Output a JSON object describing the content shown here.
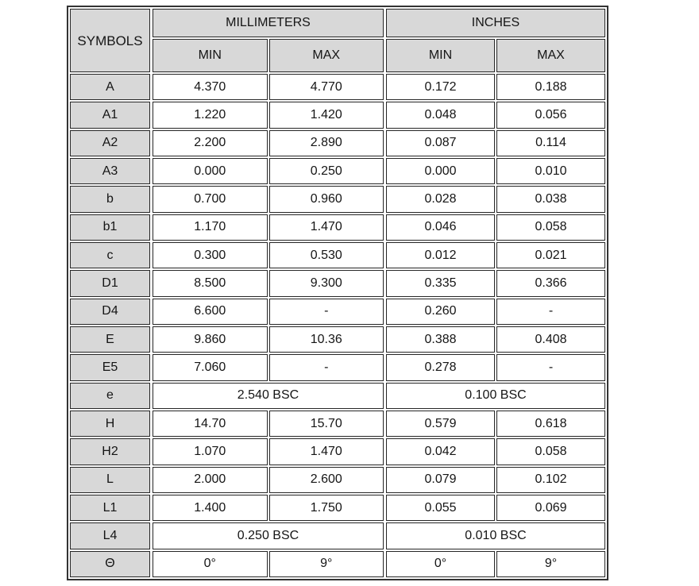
{
  "table": {
    "symbols_header": "SYMBOLS",
    "groups": [
      {
        "label": "MILLIMETERS",
        "min_label": "MIN",
        "max_label": "MAX"
      },
      {
        "label": "INCHES",
        "min_label": "MIN",
        "max_label": "MAX"
      }
    ],
    "rows": [
      {
        "symbol": "A",
        "mm_min": "4.370",
        "mm_max": "4.770",
        "in_min": "0.172",
        "in_max": "0.188"
      },
      {
        "symbol": "A1",
        "mm_min": "1.220",
        "mm_max": "1.420",
        "in_min": "0.048",
        "in_max": "0.056"
      },
      {
        "symbol": "A2",
        "mm_min": "2.200",
        "mm_max": "2.890",
        "in_min": "0.087",
        "in_max": "0.114"
      },
      {
        "symbol": "A3",
        "mm_min": "0.000",
        "mm_max": "0.250",
        "in_min": "0.000",
        "in_max": "0.010"
      },
      {
        "symbol": "b",
        "mm_min": "0.700",
        "mm_max": "0.960",
        "in_min": "0.028",
        "in_max": "0.038"
      },
      {
        "symbol": "b1",
        "mm_min": "1.170",
        "mm_max": "1.470",
        "in_min": "0.046",
        "in_max": "0.058"
      },
      {
        "symbol": "c",
        "mm_min": "0.300",
        "mm_max": "0.530",
        "in_min": "0.012",
        "in_max": "0.021"
      },
      {
        "symbol": "D1",
        "mm_min": "8.500",
        "mm_max": "9.300",
        "in_min": "0.335",
        "in_max": "0.366"
      },
      {
        "symbol": "D4",
        "mm_min": "6.600",
        "mm_max": "-",
        "in_min": "0.260",
        "in_max": "-"
      },
      {
        "symbol": "E",
        "mm_min": "9.860",
        "mm_max": "10.36",
        "in_min": "0.388",
        "in_max": "0.408"
      },
      {
        "symbol": "E5",
        "mm_min": "7.060",
        "mm_max": "-",
        "in_min": "0.278",
        "in_max": "-"
      },
      {
        "symbol": "e",
        "span": true,
        "mm": "2.540 BSC",
        "in": "0.100 BSC"
      },
      {
        "symbol": "H",
        "mm_min": "14.70",
        "mm_max": "15.70",
        "in_min": "0.579",
        "in_max": "0.618"
      },
      {
        "symbol": "H2",
        "mm_min": "1.070",
        "mm_max": "1.470",
        "in_min": "0.042",
        "in_max": "0.058"
      },
      {
        "symbol": "L",
        "mm_min": "2.000",
        "mm_max": "2.600",
        "in_min": "0.079",
        "in_max": "0.102"
      },
      {
        "symbol": "L1",
        "mm_min": "1.400",
        "mm_max": "1.750",
        "in_min": "0.055",
        "in_max": "0.069"
      },
      {
        "symbol": "L4",
        "span": true,
        "mm": "0.250 BSC",
        "in": "0.010 BSC"
      },
      {
        "symbol": "Θ",
        "mm_min": "0°",
        "mm_max": "9°",
        "in_min": "0°",
        "in_max": "9°"
      }
    ]
  },
  "colors": {
    "header_fill": "#d8d8d8",
    "border": "#262626",
    "background": "#ffffff",
    "text": "#151515"
  }
}
